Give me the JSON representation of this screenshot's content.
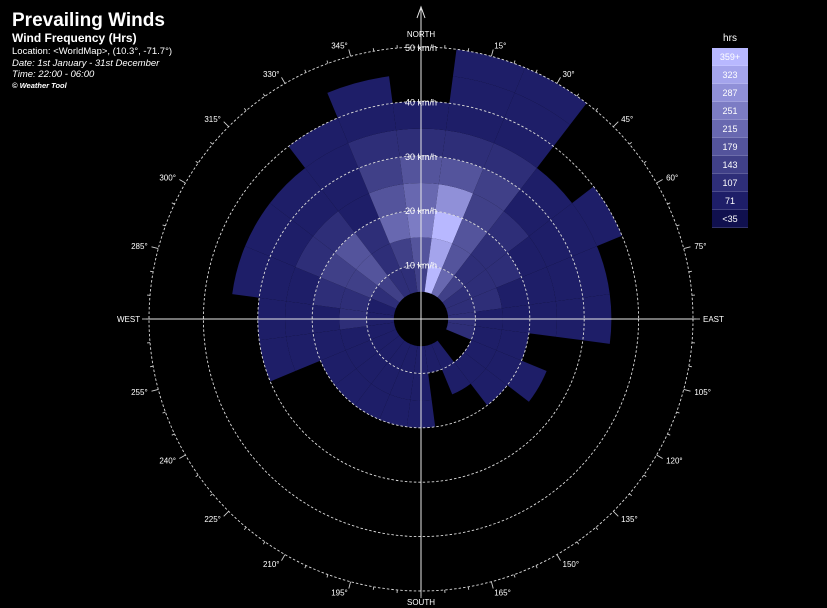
{
  "header": {
    "title": "Prevailing Winds",
    "subtitle": "Wind Frequency (Hrs)",
    "location": "Location: <WorldMap>,  (10.3°, -71.7°)",
    "date": "Date: 1st January - 31st December",
    "time": "Time: 22:00 - 06:00",
    "copyright": "© Weather Tool"
  },
  "legend": {
    "title": "hrs",
    "items": [
      {
        "label": "359+",
        "color": "#b8b8ff"
      },
      {
        "label": "323",
        "color": "#a4a4ec"
      },
      {
        "label": "287",
        "color": "#9090d8"
      },
      {
        "label": "251",
        "color": "#7c7cc4"
      },
      {
        "label": "215",
        "color": "#6868b0"
      },
      {
        "label": "179",
        "color": "#54549c"
      },
      {
        "label": "143",
        "color": "#404088"
      },
      {
        "label": "107",
        "color": "#2e2e78"
      },
      {
        "label": "71",
        "color": "#1e1e68"
      },
      {
        "label": "<35",
        "color": "#10104e"
      }
    ]
  },
  "chart_data": {
    "type": "polar-rose",
    "title": "Prevailing Winds",
    "subtitle": "Wind Frequency (Hrs)",
    "radial_unit": "km/h",
    "radial_max": 50,
    "radial_rings": [
      10,
      20,
      30,
      40,
      50
    ],
    "ring_labels": [
      "10 km/h",
      "20 km/h",
      "30 km/h",
      "40 km/h",
      "50 km/h"
    ],
    "direction_labels": {
      "north": "NORTH",
      "south": "SOUTH",
      "east": "EAST",
      "west": "WEST"
    },
    "angle_labels": [
      "15°",
      "30°",
      "45°",
      "60°",
      "75°",
      "105°",
      "120°",
      "135°",
      "150°",
      "165°",
      "195°",
      "210°",
      "225°",
      "240°",
      "255°",
      "285°",
      "300°",
      "315°",
      "330°",
      "345°"
    ],
    "sector_width_deg": 15,
    "speed_bins": [
      [
        5,
        10
      ],
      [
        10,
        15
      ],
      [
        15,
        20
      ],
      [
        20,
        25
      ],
      [
        25,
        30
      ],
      [
        30,
        35
      ],
      [
        35,
        40
      ],
      [
        40,
        45
      ],
      [
        45,
        50
      ]
    ],
    "sectors": [
      {
        "dir": 330,
        "hours": [
          107,
          107,
          107,
          71,
          71,
          71,
          71,
          0,
          0
        ]
      },
      {
        "dir": 345,
        "hours": [
          107,
          143,
          215,
          179,
          143,
          107,
          71,
          71,
          0
        ]
      },
      {
        "dir": 0,
        "hours": [
          143,
          179,
          251,
          215,
          179,
          107,
          71,
          0,
          0
        ]
      },
      {
        "dir": 15,
        "hours": [
          359,
          323,
          359,
          287,
          179,
          107,
          71,
          71,
          71
        ]
      },
      {
        "dir": 30,
        "hours": [
          215,
          179,
          179,
          143,
          143,
          107,
          71,
          71,
          71
        ]
      },
      {
        "dir": 45,
        "hours": [
          143,
          107,
          107,
          107,
          71,
          71,
          0,
          0,
          0
        ]
      },
      {
        "dir": 60,
        "hours": [
          107,
          107,
          107,
          71,
          71,
          71,
          71,
          0,
          0
        ]
      },
      {
        "dir": 75,
        "hours": [
          107,
          107,
          71,
          71,
          71,
          71,
          0,
          0,
          0
        ]
      },
      {
        "dir": 90,
        "hours": [
          107,
          71,
          71,
          71,
          71,
          71,
          0,
          0,
          0
        ]
      },
      {
        "dir": 105,
        "hours": [
          107,
          71,
          71,
          0,
          0,
          0,
          0,
          0,
          0
        ]
      },
      {
        "dir": 120,
        "hours": [
          0,
          71,
          71,
          71,
          0,
          0,
          0,
          0,
          0
        ]
      },
      {
        "dir": 135,
        "hours": [
          0,
          71,
          71,
          0,
          0,
          0,
          0,
          0,
          0
        ]
      },
      {
        "dir": 150,
        "hours": [
          71,
          71,
          0,
          0,
          0,
          0,
          0,
          0,
          0
        ]
      },
      {
        "dir": 165,
        "hours": [
          71,
          0,
          0,
          0,
          0,
          0,
          0,
          0,
          0
        ]
      },
      {
        "dir": 180,
        "hours": [
          71,
          71,
          71,
          0,
          0,
          0,
          0,
          0,
          0
        ]
      },
      {
        "dir": 195,
        "hours": [
          71,
          71,
          71,
          0,
          0,
          0,
          0,
          0,
          0
        ]
      },
      {
        "dir": 210,
        "hours": [
          71,
          71,
          71,
          0,
          0,
          0,
          0,
          0,
          0
        ]
      },
      {
        "dir": 225,
        "hours": [
          71,
          71,
          71,
          0,
          0,
          0,
          0,
          0,
          0
        ]
      },
      {
        "dir": 240,
        "hours": [
          71,
          71,
          71,
          0,
          0,
          0,
          0,
          0,
          0
        ]
      },
      {
        "dir": 255,
        "hours": [
          71,
          71,
          71,
          71,
          71,
          0,
          0,
          0,
          0
        ]
      },
      {
        "dir": 270,
        "hours": [
          71,
          107,
          71,
          71,
          71,
          0,
          0,
          0,
          0
        ]
      },
      {
        "dir": 285,
        "hours": [
          71,
          107,
          107,
          71,
          71,
          71,
          0,
          0,
          0
        ]
      },
      {
        "dir": 300,
        "hours": [
          107,
          143,
          143,
          107,
          71,
          71,
          0,
          0,
          0
        ]
      },
      {
        "dir": 315,
        "hours": [
          143,
          179,
          179,
          107,
          71,
          71,
          0,
          0,
          0
        ]
      }
    ]
  }
}
